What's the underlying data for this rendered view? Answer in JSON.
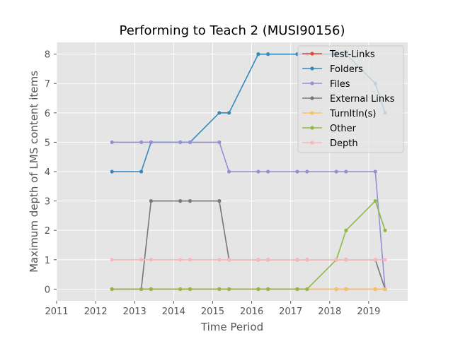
{
  "chart_data": {
    "type": "line",
    "title": "Performing to Teach 2 (MUSI90156)",
    "xlabel": "Time Period",
    "ylabel": "Maximum depth of LMS content items",
    "xlim": [
      2011,
      2020
    ],
    "ylim": [
      -0.4,
      8.4
    ],
    "x_ticks": [
      2011,
      2012,
      2013,
      2014,
      2015,
      2016,
      2017,
      2018,
      2019
    ],
    "y_ticks": [
      0,
      1,
      2,
      3,
      4,
      5,
      6,
      7,
      8
    ],
    "grid": true,
    "legend_position": "top-right",
    "x": [
      2012.42,
      2013.17,
      2013.42,
      2014.17,
      2014.42,
      2015.17,
      2015.42,
      2016.17,
      2016.42,
      2017.17,
      2017.42,
      2018.17,
      2018.42,
      2019.17,
      2019.42
    ],
    "series": [
      {
        "name": "Test-Links",
        "color": "#e24a33",
        "values": [
          0,
          0,
          0,
          0,
          0,
          0,
          0,
          0,
          0,
          0,
          0,
          0,
          0,
          0,
          0
        ]
      },
      {
        "name": "Folders",
        "color": "#348abd",
        "values": [
          4,
          4,
          5,
          5,
          5,
          6,
          6,
          8,
          8,
          8,
          8,
          8,
          8,
          7,
          6
        ]
      },
      {
        "name": "Files",
        "color": "#988ed5",
        "values": [
          5,
          5,
          5,
          5,
          5,
          5,
          4,
          4,
          4,
          4,
          4,
          4,
          4,
          4,
          0
        ]
      },
      {
        "name": "External Links",
        "color": "#777777",
        "values": [
          0,
          0,
          3,
          3,
          3,
          3,
          1,
          1,
          1,
          1,
          1,
          1,
          1,
          1,
          0
        ]
      },
      {
        "name": "TurnItIn(s)",
        "color": "#fbc15e",
        "values": [
          0,
          0,
          0,
          0,
          0,
          0,
          0,
          0,
          0,
          0,
          0,
          0,
          0,
          0,
          0
        ]
      },
      {
        "name": "Other",
        "color": "#8eba42",
        "values": [
          0,
          0,
          0,
          0,
          0,
          0,
          0,
          0,
          0,
          0,
          0,
          1,
          2,
          3,
          2
        ]
      },
      {
        "name": "Depth",
        "color": "#ffb5b8",
        "values": [
          1,
          1,
          1,
          1,
          1,
          1,
          1,
          1,
          1,
          1,
          1,
          1,
          1,
          1,
          1
        ]
      }
    ]
  }
}
